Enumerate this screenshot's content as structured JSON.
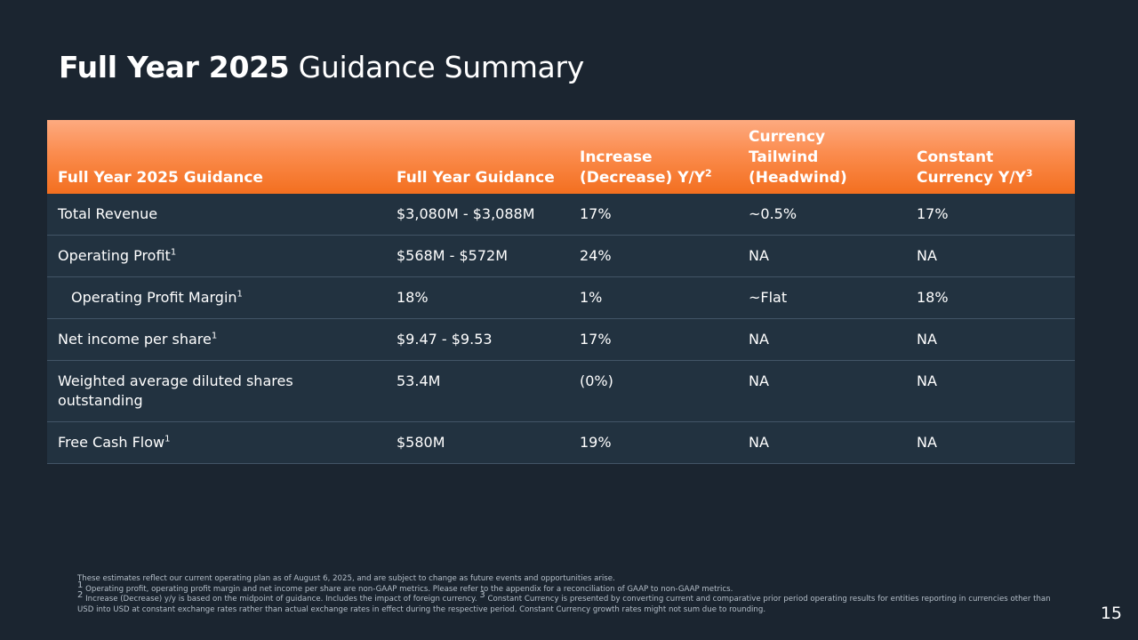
{
  "title": {
    "bold": "Full Year 2025",
    "rest": " Guidance Summary"
  },
  "table": {
    "headers": [
      {
        "text": "Full Year 2025 Guidance",
        "sup": ""
      },
      {
        "text": "Full Year Guidance",
        "sup": ""
      },
      {
        "text": "Increase (Decrease) Y/Y",
        "sup": "2"
      },
      {
        "text": "Currency Tailwind (Headwind)",
        "sup": ""
      },
      {
        "text": "Constant Currency Y/Y",
        "sup": "3"
      }
    ],
    "rows": [
      {
        "label": "Total Revenue",
        "sup": "",
        "cells": [
          "$3,080M - $3,088M",
          "17%",
          "~0.5%",
          "17%"
        ]
      },
      {
        "label": "Operating Profit",
        "sup": "1",
        "cells": [
          "$568M - $572M",
          "24%",
          "NA",
          "NA"
        ]
      },
      {
        "label": "Operating Profit Margin",
        "sup": "1",
        "cells": [
          "18%",
          "1%",
          "~Flat",
          "18%"
        ]
      },
      {
        "label": "Net income per share",
        "sup": "1",
        "cells": [
          "$9.47 - $9.53",
          "17%",
          "NA",
          "NA"
        ]
      },
      {
        "label": "Weighted average diluted shares outstanding",
        "sup": "",
        "cells": [
          "53.4M",
          "(0%)",
          "NA",
          "NA"
        ]
      },
      {
        "label": "Free Cash Flow",
        "sup": "1",
        "cells": [
          "$580M",
          "19%",
          "NA",
          "NA"
        ]
      }
    ]
  },
  "footnotes": {
    "intro": "These estimates reflect our current operating plan as of August 6, 2025, and are subject to change as future events and opportunities arise.",
    "note1_num": "1",
    "note1": " Operating profit, operating profit margin and net income per share are non-GAAP metrics. Please refer to the appendix for a reconciliation of GAAP to non-GAAP metrics.",
    "note2_num": "2",
    "note2": " Increase (Decrease) y/y is based on the midpoint of guidance. Includes the impact of foreign currency. ",
    "note3_num": "3",
    "note3": " Constant Currency is presented by converting current and comparative prior period operating results for entities reporting in currencies other than USD into USD at constant exchange rates rather than actual exchange rates in effect during the respective period. Constant Currency growth rates might not sum due to rounding."
  },
  "page_number": "15"
}
